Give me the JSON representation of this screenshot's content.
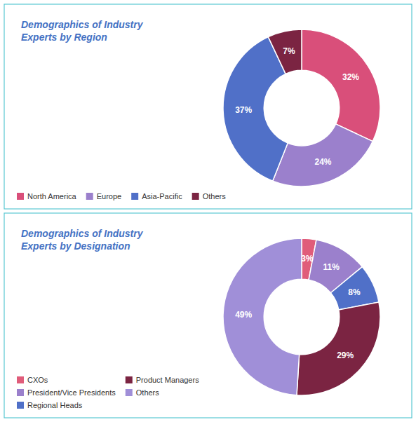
{
  "chart_data": [
    {
      "type": "pie",
      "title": "Demographics of Industry\nExperts by Region",
      "categories": [
        "North America",
        "Europe",
        "Asia-Pacific",
        "Others"
      ],
      "values": [
        32,
        24,
        37,
        7
      ],
      "value_labels": [
        "32%",
        "24%",
        "37%",
        "7%"
      ],
      "colors": [
        "#D94F7A",
        "#9B80CC",
        "#5070C8",
        "#7B2442"
      ],
      "data_labels": true,
      "legend": "lower left"
    },
    {
      "type": "pie",
      "title": "Demographics of Industry\nExperts by Designation",
      "categories": [
        "CXOs",
        "President/Vice Presidents",
        "Regional Heads",
        "Product Managers",
        "Others"
      ],
      "values": [
        3,
        11,
        8,
        29,
        49
      ],
      "value_labels": [
        "3%",
        "11%",
        "8%",
        "29%",
        "49%"
      ],
      "colors": [
        "#E05C7A",
        "#9B80CC",
        "#5070C8",
        "#7B2442",
        "#A08FD8"
      ],
      "data_labels": true,
      "legend": "lower left"
    }
  ]
}
